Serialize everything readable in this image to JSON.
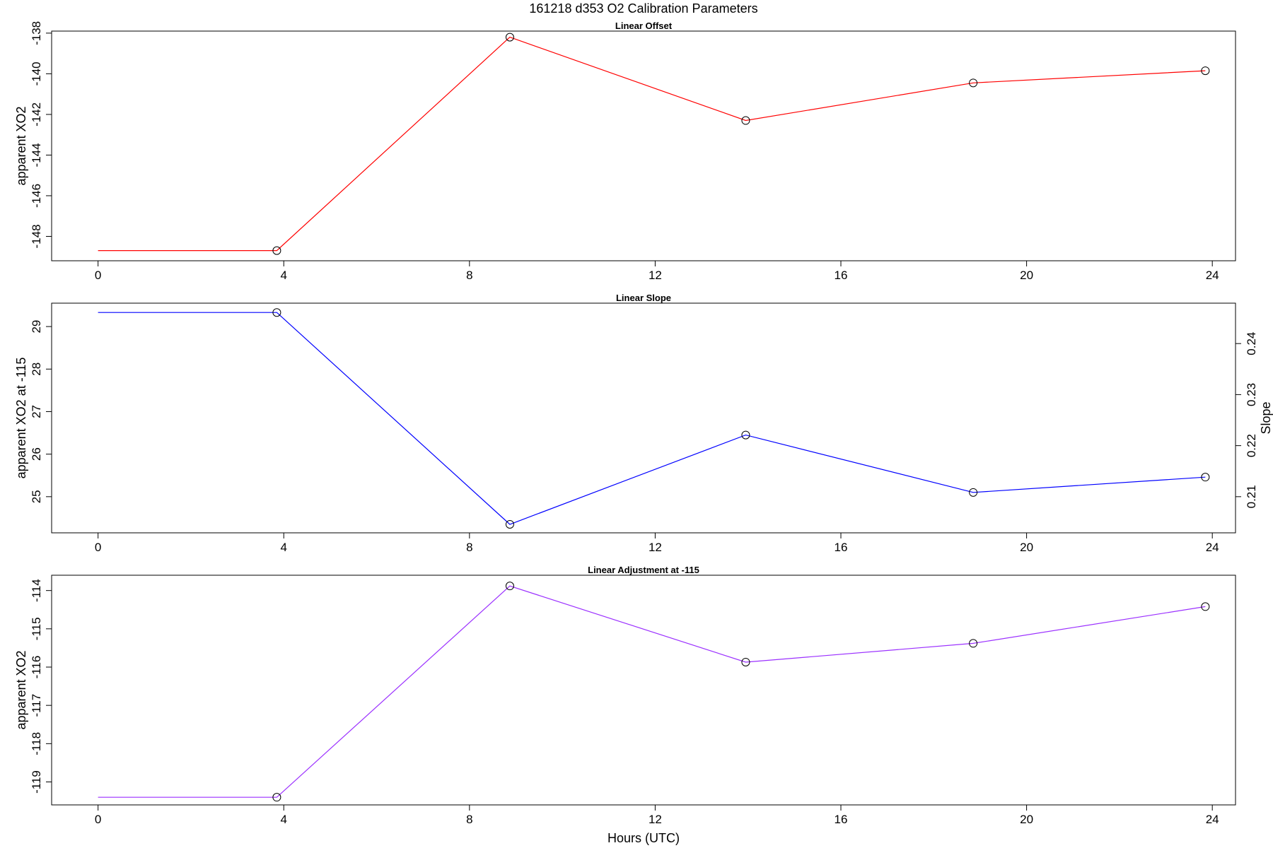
{
  "figure_title": "161218   d353   O2 Calibration Parameters",
  "xlabel": "Hours (UTC)",
  "chart_data": [
    {
      "type": "line",
      "title": "Linear Offset",
      "ylabel": "apparent XO2",
      "color": "#ff0000",
      "xlim": [
        -1.0,
        24.5
      ],
      "ylim": [
        -149.2,
        -137.9
      ],
      "xticks": [
        0,
        4,
        8,
        12,
        16,
        20,
        24
      ],
      "yticks": [
        -148,
        -146,
        -144,
        -142,
        -140,
        -138
      ],
      "line_x": [
        0.0,
        3.85,
        8.87,
        13.95,
        18.85,
        23.85
      ],
      "line_y": [
        -148.7,
        -148.7,
        -138.2,
        -142.3,
        -140.45,
        -139.85
      ],
      "points_x": [
        3.85,
        8.87,
        13.95,
        18.85,
        23.85
      ],
      "points_y": [
        -148.7,
        -138.2,
        -142.3,
        -140.45,
        -139.85
      ]
    },
    {
      "type": "line",
      "title": "Linear Slope",
      "ylabel": "apparent XO2 at -115",
      "y2label": "Slope",
      "color": "#0000ff",
      "xlim": [
        -1.0,
        24.5
      ],
      "ylim": [
        24.15,
        29.55
      ],
      "xticks": [
        0,
        4,
        8,
        12,
        16,
        20,
        24
      ],
      "yticks": [
        25,
        26,
        27,
        28,
        29
      ],
      "y2ticks": [
        0.21,
        0.22,
        0.23,
        0.24
      ],
      "y2ticks_at": [
        25.0,
        26.2,
        27.4,
        28.6
      ],
      "line_x": [
        0.0,
        3.85,
        8.87,
        13.95,
        18.85,
        23.85
      ],
      "line_y": [
        29.33,
        29.33,
        24.35,
        26.45,
        25.1,
        25.46
      ],
      "points_x": [
        3.85,
        8.87,
        13.95,
        18.85,
        23.85
      ],
      "points_y": [
        29.33,
        24.35,
        26.45,
        25.1,
        25.46
      ]
    },
    {
      "type": "line",
      "title": "Linear Adjustment at -115",
      "ylabel": "apparent XO2",
      "color": "#9b30ff",
      "xlim": [
        -1.0,
        24.5
      ],
      "ylim": [
        -119.6,
        -113.6
      ],
      "xticks": [
        0,
        4,
        8,
        12,
        16,
        20,
        24
      ],
      "yticks": [
        -119,
        -118,
        -117,
        -116,
        -115,
        -114
      ],
      "line_x": [
        0.0,
        3.85,
        8.87,
        13.95,
        18.85,
        23.85
      ],
      "line_y": [
        -119.4,
        -119.4,
        -113.88,
        -115.87,
        -115.38,
        -114.42
      ],
      "points_x": [
        3.85,
        8.87,
        13.95,
        18.85,
        23.85
      ],
      "points_y": [
        -119.4,
        -113.88,
        -115.87,
        -115.38,
        -114.42
      ]
    }
  ]
}
